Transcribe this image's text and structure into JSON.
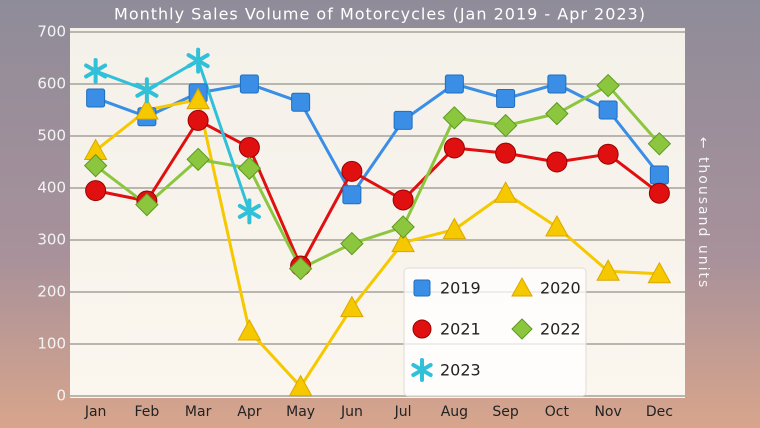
{
  "chart_data": {
    "type": "line",
    "title": "Monthly Sales Volume of Motorcycles (Jan 2019 - Apr 2023)",
    "y_label": "← thousand units",
    "categories": [
      "Jan",
      "Feb",
      "Mar",
      "Apr",
      "May",
      "Jun",
      "Jul",
      "Aug",
      "Sep",
      "Oct",
      "Nov",
      "Dec"
    ],
    "series": [
      {
        "name": "2019",
        "color": "#3a8ee6",
        "marker": "square",
        "values": [
          573,
          537,
          583,
          600,
          565,
          387,
          530,
          600,
          572,
          600,
          550,
          425
        ]
      },
      {
        "name": "2020",
        "color": "#f5c800",
        "marker": "triangle",
        "values": [
          472,
          550,
          570,
          125,
          18,
          170,
          295,
          320,
          390,
          325,
          240,
          235
        ]
      },
      {
        "name": "2021",
        "color": "#e01010",
        "marker": "circle",
        "values": [
          395,
          375,
          530,
          478,
          250,
          432,
          377,
          477,
          467,
          450,
          465,
          390
        ]
      },
      {
        "name": "2022",
        "color": "#8cc63f",
        "marker": "diamond",
        "values": [
          443,
          368,
          455,
          438,
          245,
          293,
          325,
          535,
          520,
          543,
          597,
          485
        ]
      },
      {
        "name": "2023",
        "color": "#30c0d8",
        "marker": "asterisk",
        "values": [
          625,
          588,
          645,
          355,
          null,
          null,
          null,
          null,
          null,
          null,
          null,
          null
        ]
      }
    ],
    "ylim": [
      0,
      700
    ],
    "yticks": [
      0,
      100,
      200,
      300,
      400,
      500,
      600,
      700
    ],
    "grid": true,
    "legend": "lower right"
  }
}
